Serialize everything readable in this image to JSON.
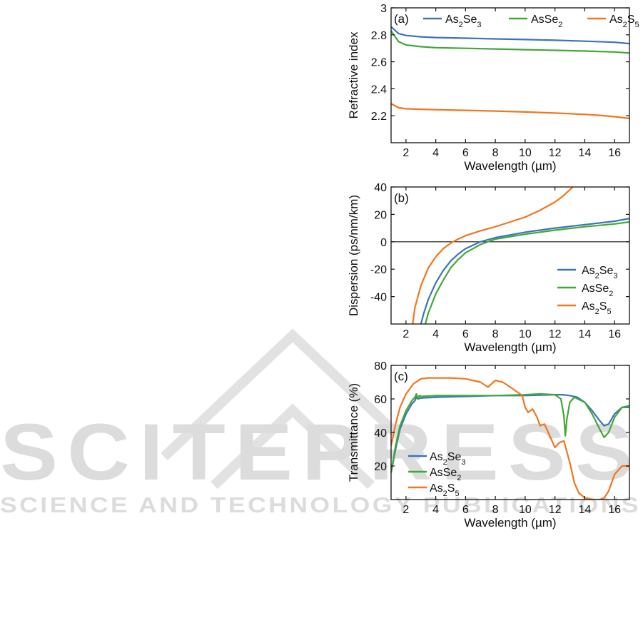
{
  "watermark": {
    "main": "SCITEPRESS",
    "sub": "SCIENCE AND TECHNOLOGY PUBLICATIONS",
    "color": "#d8d8d8"
  },
  "series_colors": {
    "As2Se3": "#3c74b8",
    "AsSe2": "#41a835",
    "As2S5": "#f07620"
  },
  "chart_data": [
    {
      "type": "line",
      "panel_label": "(a)",
      "xlabel": "Wavelength (µm)",
      "ylabel": "Refractive index",
      "xlim": [
        1,
        17
      ],
      "ylim": [
        2.0,
        3.0
      ],
      "xticks": [
        2,
        4,
        6,
        8,
        10,
        12,
        14,
        16
      ],
      "yticks": [
        2.2,
        2.4,
        2.6,
        2.8,
        3
      ],
      "ytick_labels": [
        "2.2",
        "2.4",
        "2.6",
        "2.8",
        "3"
      ],
      "legend_position": "top",
      "series": [
        {
          "key": "As2Se3",
          "name": "As2Se3",
          "name_base": "As",
          "name_sub1": "2",
          "name_mid": "Se",
          "name_sub2": "3",
          "x": [
            1,
            1.5,
            2,
            3,
            4,
            6,
            8,
            10,
            12,
            14,
            16,
            17
          ],
          "y": [
            2.86,
            2.81,
            2.795,
            2.785,
            2.78,
            2.775,
            2.77,
            2.765,
            2.76,
            2.753,
            2.745,
            2.735
          ]
        },
        {
          "key": "AsSe2",
          "name": "AsSe2",
          "name_base": "As",
          "name_sub1": "",
          "name_mid": "Se",
          "name_sub2": "2",
          "x": [
            1,
            1.5,
            2,
            3,
            4,
            6,
            8,
            10,
            12,
            14,
            16,
            17
          ],
          "y": [
            2.83,
            2.75,
            2.725,
            2.712,
            2.705,
            2.7,
            2.695,
            2.69,
            2.685,
            2.68,
            2.673,
            2.665
          ]
        },
        {
          "key": "As2S5",
          "name": "As2S5",
          "name_base": "As",
          "name_sub1": "2",
          "name_mid": "S",
          "name_sub2": "5",
          "x": [
            1,
            1.5,
            2,
            3,
            4,
            6,
            8,
            10,
            12,
            14,
            15,
            16,
            17
          ],
          "y": [
            2.29,
            2.26,
            2.252,
            2.248,
            2.245,
            2.24,
            2.235,
            2.228,
            2.22,
            2.21,
            2.203,
            2.193,
            2.18
          ]
        }
      ]
    },
    {
      "type": "line",
      "panel_label": "(b)",
      "xlabel": "Wavelength (µm)",
      "ylabel": "Dispersion (ps/nm/km)",
      "xlim": [
        1,
        17
      ],
      "ylim": [
        -60,
        40
      ],
      "xticks": [
        2,
        4,
        6,
        8,
        10,
        12,
        14,
        16
      ],
      "yticks": [
        -40,
        -20,
        0,
        20,
        40
      ],
      "ytick_labels": [
        "-40",
        "-20",
        "0",
        "20",
        "40"
      ],
      "zero_line": true,
      "legend_position": "lower right",
      "series": [
        {
          "key": "As2Se3",
          "name": "As2Se3",
          "name_base": "As",
          "name_sub1": "2",
          "name_mid": "Se",
          "name_sub2": "3",
          "x": [
            3.0,
            3.2,
            3.5,
            4,
            4.5,
            5,
            5.5,
            6,
            7,
            8,
            10,
            12,
            14,
            16,
            17
          ],
          "y": [
            -60,
            -52,
            -42,
            -30,
            -21,
            -14,
            -9,
            -5,
            0,
            3,
            7,
            10,
            12.5,
            15,
            17
          ]
        },
        {
          "key": "AsSe2",
          "name": "AsSe2",
          "name_base": "As",
          "name_sub1": "",
          "name_mid": "Se",
          "name_sub2": "2",
          "x": [
            3.3,
            3.5,
            4,
            4.5,
            5,
            5.5,
            6,
            7,
            8,
            10,
            12,
            14,
            16,
            17
          ],
          "y": [
            -60,
            -52,
            -38,
            -28,
            -19,
            -13,
            -8,
            -2,
            2,
            5.5,
            8.5,
            11,
            13,
            14.5
          ]
        },
        {
          "key": "As2S5",
          "name": "As2S5",
          "name_base": "As",
          "name_sub1": "2",
          "name_mid": "S",
          "name_sub2": "5",
          "x": [
            2.45,
            2.6,
            3,
            3.5,
            4,
            4.5,
            5,
            5.5,
            6,
            7,
            8,
            9,
            10,
            11,
            12,
            12.5,
            13.2
          ],
          "y": [
            -60,
            -48,
            -32,
            -19,
            -11,
            -5,
            -1,
            2,
            4.5,
            8,
            11,
            14.5,
            18,
            23,
            29,
            33,
            40
          ]
        }
      ]
    },
    {
      "type": "line",
      "panel_label": "(c)",
      "xlabel": "Wavelength (µm)",
      "ylabel": "Transmittance (%)",
      "xlim": [
        1,
        17
      ],
      "ylim": [
        0,
        80
      ],
      "xticks": [
        2,
        4,
        6,
        8,
        10,
        12,
        14,
        16
      ],
      "yticks": [
        20,
        40,
        60,
        80
      ],
      "ytick_labels": [
        "20",
        "40",
        "60",
        "80"
      ],
      "legend_position": "lower left",
      "series": [
        {
          "key": "As2Se3",
          "name": "As2Se3",
          "name_base": "As",
          "name_sub1": "2",
          "name_mid": "Se",
          "name_sub2": "3",
          "x": [
            1,
            1.3,
            1.6,
            2,
            2.4,
            2.6,
            2.7,
            2.8,
            3,
            4,
            6,
            8,
            10,
            11,
            12,
            12.5,
            13,
            13.5,
            14,
            14.5,
            15,
            15.3,
            15.6,
            16,
            16.5,
            17
          ],
          "y": [
            16,
            30,
            42,
            51,
            57,
            59,
            61,
            60,
            60.5,
            61,
            61.5,
            62,
            62,
            62.3,
            62.5,
            62.5,
            62,
            61,
            58,
            53,
            47,
            44,
            45,
            51,
            55,
            55
          ]
        },
        {
          "key": "AsSe2",
          "name": "AsSe2",
          "name_base": "As",
          "name_sub1": "",
          "name_mid": "Se",
          "name_sub2": "2",
          "x": [
            1,
            1.3,
            1.6,
            2,
            2.4,
            2.6,
            2.7,
            2.8,
            2.9,
            3,
            4,
            6,
            8,
            10,
            11,
            12,
            12.4,
            12.6,
            12.7,
            12.8,
            13,
            13.3,
            14,
            14.5,
            15,
            15.3,
            15.6,
            16,
            16.5,
            17
          ],
          "y": [
            16,
            32,
            44,
            53,
            59,
            61,
            63,
            60,
            62,
            61.5,
            62,
            62,
            62,
            62.5,
            63,
            62.5,
            60,
            50,
            38,
            48,
            58,
            61,
            58,
            51,
            42,
            37,
            40,
            49,
            55,
            56
          ]
        },
        {
          "key": "As2S5",
          "name": "As2S5",
          "name_base": "As",
          "name_sub1": "2",
          "name_mid": "S",
          "name_sub2": "5",
          "x": [
            1,
            1.3,
            1.6,
            2,
            2.5,
            3,
            3.5,
            4,
            5,
            6,
            7,
            7.5,
            8,
            8.5,
            9,
            9.5,
            9.8,
            10,
            10.2,
            10.5,
            10.8,
            11,
            11.3,
            11.6,
            12,
            12.3,
            12.6,
            13,
            13.3,
            13.6,
            14,
            14.5,
            15,
            15.3,
            15.6,
            16,
            16.5,
            17
          ],
          "y": [
            32,
            45,
            55,
            63,
            69,
            72,
            72.5,
            72.5,
            72.5,
            72,
            70,
            67,
            71,
            70,
            67,
            64,
            62,
            55,
            52,
            54,
            49,
            44,
            45,
            39,
            31,
            34,
            35,
            22,
            10,
            4,
            1,
            0,
            0,
            1,
            5,
            15,
            20,
            20
          ]
        }
      ]
    }
  ]
}
